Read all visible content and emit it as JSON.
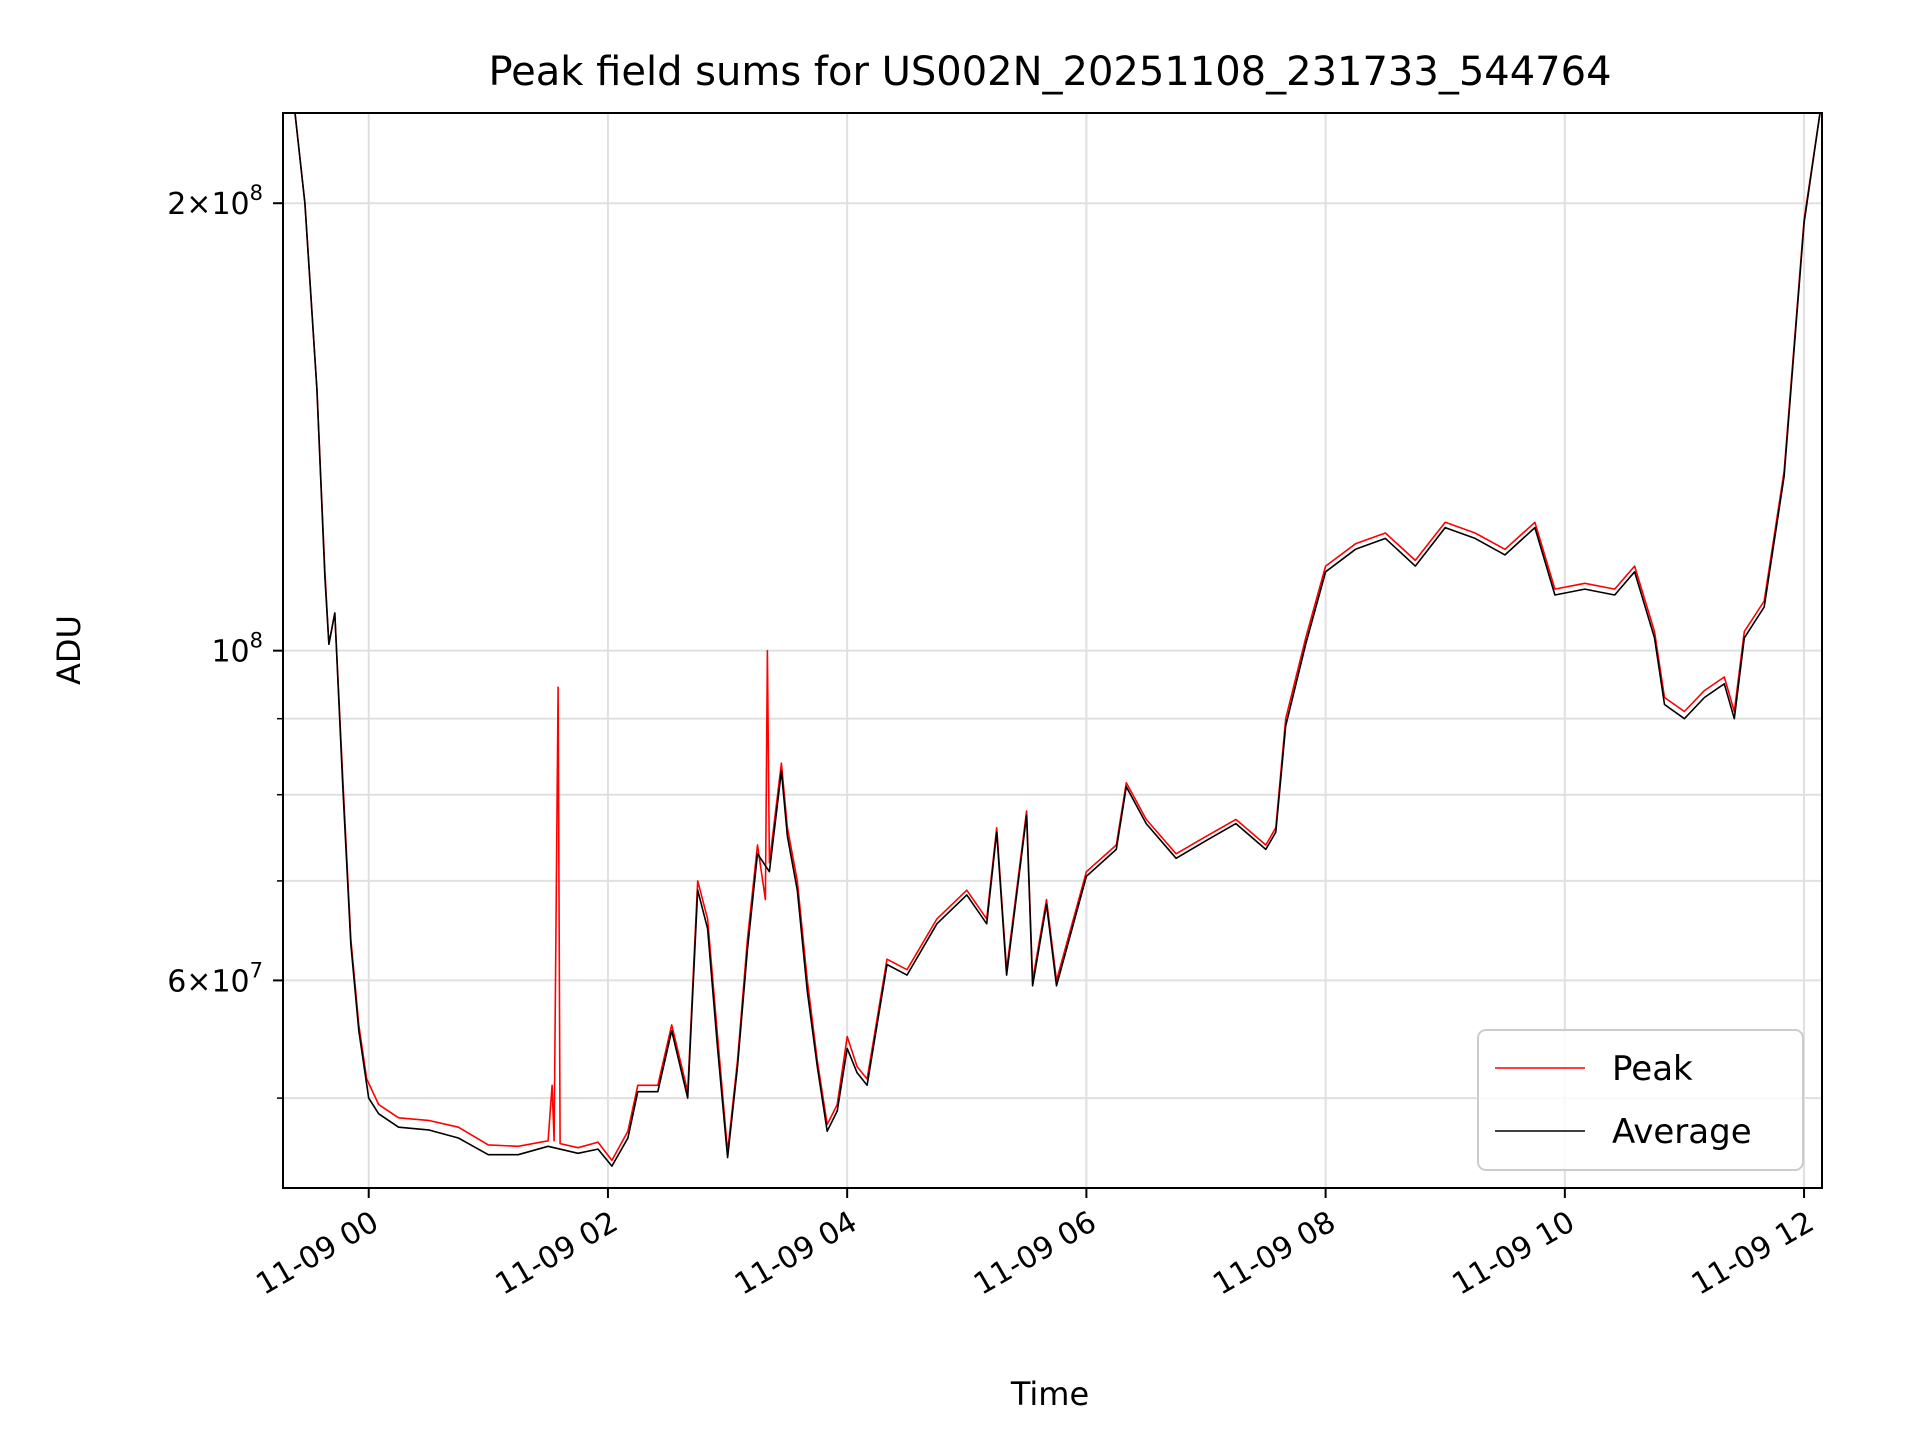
{
  "chart_data": {
    "type": "line",
    "title": "Peak field sums for US002N_20251108_231733_544764",
    "xlabel": "Time",
    "ylabel": "ADU",
    "yscale": "log",
    "ylim": [
      43500000,
      230000000
    ],
    "xlim": [
      "2025-11-08 23:17",
      "2025-11-09 12:09"
    ],
    "grid": true,
    "legend_position": "lower-right",
    "x_ticks": [
      {
        "value": "2025-11-09 00:00",
        "label": "11-09 00"
      },
      {
        "value": "2025-11-09 02:00",
        "label": "11-09 02"
      },
      {
        "value": "2025-11-09 04:00",
        "label": "11-09 04"
      },
      {
        "value": "2025-11-09 06:00",
        "label": "11-09 06"
      },
      {
        "value": "2025-11-09 08:00",
        "label": "11-09 08"
      },
      {
        "value": "2025-11-09 10:00",
        "label": "11-09 10"
      },
      {
        "value": "2025-11-09 12:00",
        "label": "11-09 12"
      }
    ],
    "y_ticks": [
      {
        "value": 200000000,
        "mantissa": "2",
        "exp": "8",
        "major": true
      },
      {
        "value": 100000000,
        "mantissa": "",
        "exp": "8",
        "major": true
      },
      {
        "value": 60000000,
        "mantissa": "6",
        "exp": "7",
        "major": true
      }
    ],
    "y_minor_ticks": [
      90000000,
      80000000,
      70000000,
      50000000
    ],
    "series": [
      {
        "name": "Peak",
        "color": "#ff0000",
        "points": [
          [
            "2025-11-08 23:23",
            230000000
          ],
          [
            "2025-11-08 23:28",
            200000000
          ],
          [
            "2025-11-08 23:34",
            150000000
          ],
          [
            "2025-11-08 23:38",
            113000000
          ],
          [
            "2025-11-08 23:40",
            101000000
          ],
          [
            "2025-11-08 23:43",
            106000000
          ],
          [
            "2025-11-08 23:47",
            82000000
          ],
          [
            "2025-11-08 23:51",
            64000000
          ],
          [
            "2025-11-08 23:55",
            56000000
          ],
          [
            "2025-11-08 23:59",
            51500000
          ],
          [
            "2025-11-09 00:05",
            49500000
          ],
          [
            "2025-11-09 00:15",
            48500000
          ],
          [
            "2025-11-09 00:30",
            48300000
          ],
          [
            "2025-11-09 00:45",
            47800000
          ],
          [
            "2025-11-09 01:00",
            46500000
          ],
          [
            "2025-11-09 01:15",
            46400000
          ],
          [
            "2025-11-09 01:30",
            46800000
          ],
          [
            "2025-11-09 01:32",
            51000000
          ],
          [
            "2025-11-09 01:33",
            46800000
          ],
          [
            "2025-11-09 01:35",
            94500000
          ],
          [
            "2025-11-09 01:36",
            46600000
          ],
          [
            "2025-11-09 01:45",
            46300000
          ],
          [
            "2025-11-09 01:55",
            46700000
          ],
          [
            "2025-11-09 02:02",
            45400000
          ],
          [
            "2025-11-09 02:10",
            47500000
          ],
          [
            "2025-11-09 02:15",
            51000000
          ],
          [
            "2025-11-09 02:25",
            51000000
          ],
          [
            "2025-11-09 02:32",
            56000000
          ],
          [
            "2025-11-09 02:40",
            50500000
          ],
          [
            "2025-11-09 02:45",
            70000000
          ],
          [
            "2025-11-09 02:50",
            66000000
          ],
          [
            "2025-11-09 02:55",
            55000000
          ],
          [
            "2025-11-09 03:00",
            46000000
          ],
          [
            "2025-11-09 03:05",
            53000000
          ],
          [
            "2025-11-09 03:10",
            64000000
          ],
          [
            "2025-11-09 03:15",
            74000000
          ],
          [
            "2025-11-09 03:19",
            68000000
          ],
          [
            "2025-11-09 03:20",
            100000000
          ],
          [
            "2025-11-09 03:21",
            72000000
          ],
          [
            "2025-11-09 03:27",
            84000000
          ],
          [
            "2025-11-09 03:30",
            76000000
          ],
          [
            "2025-11-09 03:35",
            70000000
          ],
          [
            "2025-11-09 03:40",
            60000000
          ],
          [
            "2025-11-09 03:45",
            53000000
          ],
          [
            "2025-11-09 03:50",
            48000000
          ],
          [
            "2025-11-09 03:55",
            49500000
          ],
          [
            "2025-11-09 04:00",
            55000000
          ],
          [
            "2025-11-09 04:05",
            52500000
          ],
          [
            "2025-11-09 04:10",
            51500000
          ],
          [
            "2025-11-09 04:20",
            62000000
          ],
          [
            "2025-11-09 04:30",
            61000000
          ],
          [
            "2025-11-09 04:45",
            66000000
          ],
          [
            "2025-11-09 05:00",
            69000000
          ],
          [
            "2025-11-09 05:10",
            66000000
          ],
          [
            "2025-11-09 05:15",
            76000000
          ],
          [
            "2025-11-09 05:20",
            61000000
          ],
          [
            "2025-11-09 05:30",
            78000000
          ],
          [
            "2025-11-09 05:33",
            60000000
          ],
          [
            "2025-11-09 05:40",
            68000000
          ],
          [
            "2025-11-09 05:45",
            60000000
          ],
          [
            "2025-11-09 06:00",
            71000000
          ],
          [
            "2025-11-09 06:15",
            74000000
          ],
          [
            "2025-11-09 06:20",
            81500000
          ],
          [
            "2025-11-09 06:30",
            77000000
          ],
          [
            "2025-11-09 06:45",
            73000000
          ],
          [
            "2025-11-09 07:00",
            75000000
          ],
          [
            "2025-11-09 07:15",
            77000000
          ],
          [
            "2025-11-09 07:30",
            74000000
          ],
          [
            "2025-11-09 07:35",
            76000000
          ],
          [
            "2025-11-09 07:40",
            90000000
          ],
          [
            "2025-11-09 07:50",
            102000000
          ],
          [
            "2025-11-09 08:00",
            114000000
          ],
          [
            "2025-11-09 08:15",
            118000000
          ],
          [
            "2025-11-09 08:30",
            120000000
          ],
          [
            "2025-11-09 08:45",
            115000000
          ],
          [
            "2025-11-09 09:00",
            122000000
          ],
          [
            "2025-11-09 09:15",
            120000000
          ],
          [
            "2025-11-09 09:30",
            117000000
          ],
          [
            "2025-11-09 09:45",
            122000000
          ],
          [
            "2025-11-09 09:55",
            110000000
          ],
          [
            "2025-11-09 10:10",
            111000000
          ],
          [
            "2025-11-09 10:25",
            110000000
          ],
          [
            "2025-11-09 10:35",
            114000000
          ],
          [
            "2025-11-09 10:45",
            103000000
          ],
          [
            "2025-11-09 10:50",
            93000000
          ],
          [
            "2025-11-09 11:00",
            91000000
          ],
          [
            "2025-11-09 11:10",
            94000000
          ],
          [
            "2025-11-09 11:20",
            96000000
          ],
          [
            "2025-11-09 11:25",
            91000000
          ],
          [
            "2025-11-09 11:30",
            103000000
          ],
          [
            "2025-11-09 11:40",
            108000000
          ],
          [
            "2025-11-09 11:50",
            132000000
          ],
          [
            "2025-11-09 12:00",
            195000000
          ],
          [
            "2025-11-09 12:08",
            230000000
          ]
        ]
      },
      {
        "name": "Average",
        "color": "#000000",
        "points": [
          [
            "2025-11-08 23:23",
            230000000
          ],
          [
            "2025-11-08 23:28",
            200000000
          ],
          [
            "2025-11-08 23:34",
            150000000
          ],
          [
            "2025-11-08 23:38",
            112000000
          ],
          [
            "2025-11-08 23:40",
            101000000
          ],
          [
            "2025-11-08 23:43",
            106000000
          ],
          [
            "2025-11-08 23:47",
            81000000
          ],
          [
            "2025-11-08 23:51",
            63500000
          ],
          [
            "2025-11-08 23:55",
            55500000
          ],
          [
            "2025-11-09 00:00",
            50000000
          ],
          [
            "2025-11-09 00:05",
            48800000
          ],
          [
            "2025-11-09 00:15",
            47800000
          ],
          [
            "2025-11-09 00:30",
            47600000
          ],
          [
            "2025-11-09 00:45",
            47000000
          ],
          [
            "2025-11-09 01:00",
            45800000
          ],
          [
            "2025-11-09 01:15",
            45800000
          ],
          [
            "2025-11-09 01:30",
            46400000
          ],
          [
            "2025-11-09 01:45",
            45900000
          ],
          [
            "2025-11-09 01:55",
            46200000
          ],
          [
            "2025-11-09 02:02",
            45000000
          ],
          [
            "2025-11-09 02:10",
            47000000
          ],
          [
            "2025-11-09 02:15",
            50500000
          ],
          [
            "2025-11-09 02:25",
            50500000
          ],
          [
            "2025-11-09 02:32",
            55500000
          ],
          [
            "2025-11-09 02:40",
            50000000
          ],
          [
            "2025-11-09 02:45",
            69000000
          ],
          [
            "2025-11-09 02:50",
            65000000
          ],
          [
            "2025-11-09 02:55",
            54000000
          ],
          [
            "2025-11-09 03:00",
            45600000
          ],
          [
            "2025-11-09 03:05",
            52500000
          ],
          [
            "2025-11-09 03:10",
            63000000
          ],
          [
            "2025-11-09 03:15",
            73000000
          ],
          [
            "2025-11-09 03:21",
            71000000
          ],
          [
            "2025-11-09 03:27",
            83000000
          ],
          [
            "2025-11-09 03:30",
            75000000
          ],
          [
            "2025-11-09 03:35",
            69000000
          ],
          [
            "2025-11-09 03:40",
            59000000
          ],
          [
            "2025-11-09 03:45",
            52500000
          ],
          [
            "2025-11-09 03:50",
            47500000
          ],
          [
            "2025-11-09 03:55",
            49000000
          ],
          [
            "2025-11-09 04:00",
            54000000
          ],
          [
            "2025-11-09 04:05",
            52000000
          ],
          [
            "2025-11-09 04:10",
            51000000
          ],
          [
            "2025-11-09 04:20",
            61500000
          ],
          [
            "2025-11-09 04:30",
            60500000
          ],
          [
            "2025-11-09 04:45",
            65500000
          ],
          [
            "2025-11-09 05:00",
            68500000
          ],
          [
            "2025-11-09 05:10",
            65500000
          ],
          [
            "2025-11-09 05:15",
            75500000
          ],
          [
            "2025-11-09 05:20",
            60500000
          ],
          [
            "2025-11-09 05:30",
            77500000
          ],
          [
            "2025-11-09 05:33",
            59500000
          ],
          [
            "2025-11-09 05:40",
            67500000
          ],
          [
            "2025-11-09 05:45",
            59500000
          ],
          [
            "2025-11-09 06:00",
            70500000
          ],
          [
            "2025-11-09 06:15",
            73500000
          ],
          [
            "2025-11-09 06:20",
            81000000
          ],
          [
            "2025-11-09 06:30",
            76500000
          ],
          [
            "2025-11-09 06:45",
            72500000
          ],
          [
            "2025-11-09 07:00",
            74500000
          ],
          [
            "2025-11-09 07:15",
            76500000
          ],
          [
            "2025-11-09 07:30",
            73500000
          ],
          [
            "2025-11-09 07:35",
            75500000
          ],
          [
            "2025-11-09 07:40",
            89000000
          ],
          [
            "2025-11-09 07:50",
            101000000
          ],
          [
            "2025-11-09 08:00",
            113000000
          ],
          [
            "2025-11-09 08:15",
            117000000
          ],
          [
            "2025-11-09 08:30",
            119000000
          ],
          [
            "2025-11-09 08:45",
            114000000
          ],
          [
            "2025-11-09 09:00",
            121000000
          ],
          [
            "2025-11-09 09:15",
            119000000
          ],
          [
            "2025-11-09 09:30",
            116000000
          ],
          [
            "2025-11-09 09:45",
            121000000
          ],
          [
            "2025-11-09 09:55",
            109000000
          ],
          [
            "2025-11-09 10:10",
            110000000
          ],
          [
            "2025-11-09 10:25",
            109000000
          ],
          [
            "2025-11-09 10:35",
            113000000
          ],
          [
            "2025-11-09 10:45",
            102000000
          ],
          [
            "2025-11-09 10:50",
            92000000
          ],
          [
            "2025-11-09 11:00",
            90000000
          ],
          [
            "2025-11-09 11:10",
            93000000
          ],
          [
            "2025-11-09 11:20",
            95000000
          ],
          [
            "2025-11-09 11:25",
            90000000
          ],
          [
            "2025-11-09 11:30",
            102000000
          ],
          [
            "2025-11-09 11:40",
            107000000
          ],
          [
            "2025-11-09 11:50",
            131000000
          ],
          [
            "2025-11-09 12:00",
            194000000
          ],
          [
            "2025-11-09 12:08",
            230000000
          ]
        ]
      }
    ]
  }
}
